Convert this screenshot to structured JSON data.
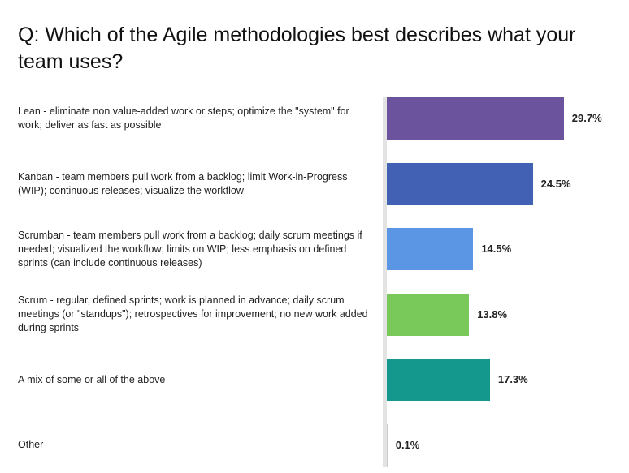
{
  "title": "Q: Which of the Agile methodologies best describes what your team uses?",
  "chart_data": {
    "type": "bar",
    "orientation": "horizontal",
    "categories": [
      "Lean - eliminate non value-added work or steps; optimize the \"system\" for work; deliver as fast as possible",
      "Kanban - team members pull work from a backlog; limit Work-in-Progress (WIP); continuous releases; visualize the workflow",
      "Scrumban - team members pull work from a backlog; daily scrum meetings if needed; visualized the workflow; limits on WIP; less emphasis on defined sprints (can include continuous releases)",
      "Scrum - regular, defined sprints; work is planned in advance; daily scrum meetings (or \"standups\"); retrospectives for improvement; no new work added during sprints",
      "A mix of some or all of the above",
      "Other"
    ],
    "values": [
      29.7,
      24.5,
      14.5,
      13.8,
      17.3,
      0.1
    ],
    "value_labels": [
      "29.7%",
      "24.5%",
      "14.5%",
      "13.8%",
      "17.3%",
      "0.1%"
    ],
    "colors": [
      "#6b549d",
      "#4361b4",
      "#5a96e3",
      "#79c95a",
      "#14978c",
      "#cccccc"
    ],
    "xlim": [
      0,
      30
    ],
    "grid": false,
    "legend": "none"
  }
}
